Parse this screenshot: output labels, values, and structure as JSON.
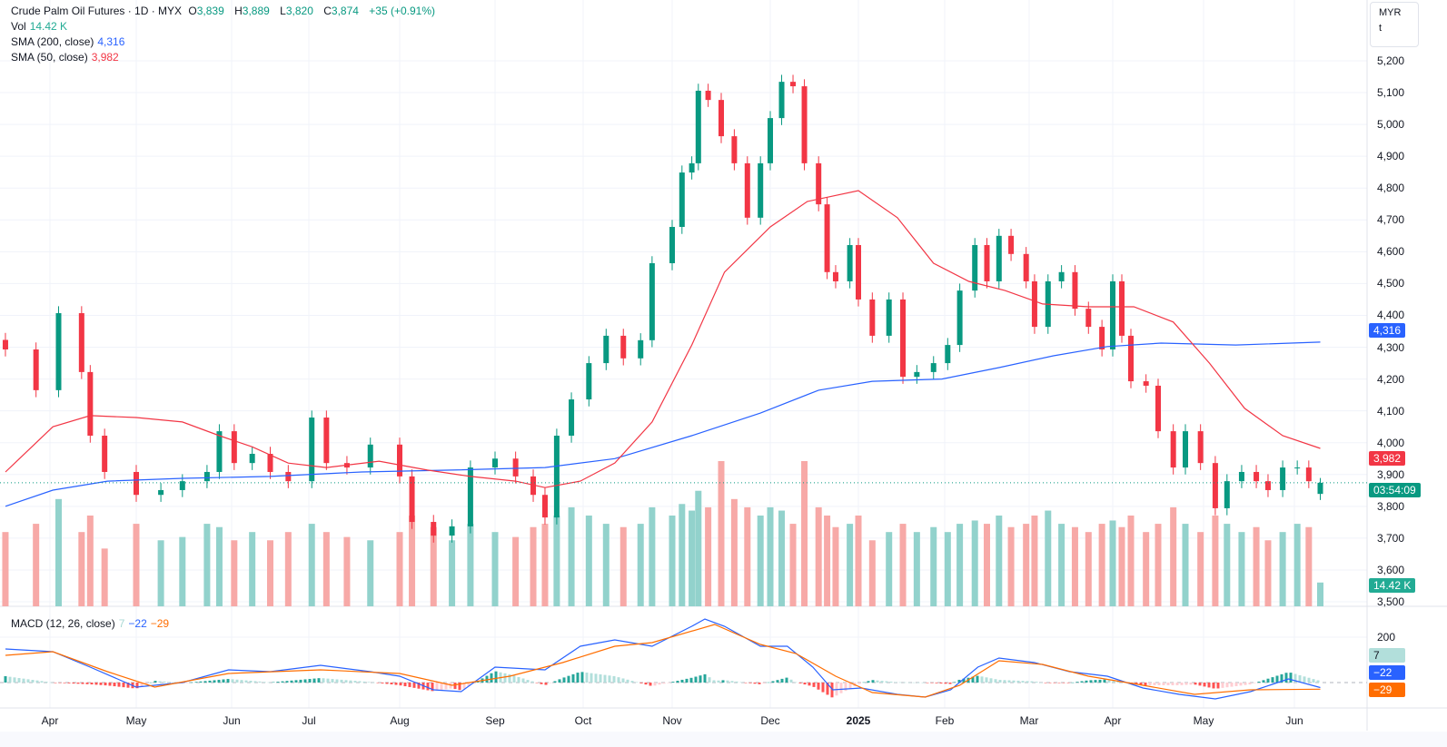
{
  "header": {
    "symbol": "Crude Palm Oil Futures · 1D · MYX",
    "o_label": "O",
    "o": "3,839",
    "h_label": "H",
    "h": "3,889",
    "l_label": "L",
    "l": "3,820",
    "c_label": "C",
    "c": "3,874",
    "change": "+35 (+0.91%)",
    "vol_label": "Vol",
    "vol": "14.42 K",
    "sma200_label": "SMA (200, close)",
    "sma200": "4,316",
    "sma50_label": "SMA (50, close)",
    "sma50": "3,982",
    "macd_label": "MACD (12, 26, close)",
    "macd_hist": "7",
    "macd": "−22",
    "macd_signal": "−29"
  },
  "unit_box": {
    "currency": "MYR",
    "unit": "t"
  },
  "badges": {
    "sma200": "4,316",
    "sma50": "3,982",
    "countdown": "03:54:09",
    "volume": "14.42 K",
    "macd_hist": "7",
    "macd": "−22",
    "macd_signal": "−29"
  },
  "colors": {
    "up": "#089981",
    "down": "#f23645",
    "vol_up": "#92d2cc",
    "vol_down": "#f7a9a7",
    "sma200": "#2962ff",
    "sma50": "#f23645",
    "macd": "#2962ff",
    "signal": "#ff6d00",
    "grid": "#f0f3fa"
  },
  "chart_data": {
    "type": "candlestick",
    "title": "Crude Palm Oil Futures · 1D · MYX",
    "ylim": [
      3500,
      5200
    ],
    "y_ticks": [
      "5,200",
      "5,100",
      "5,000",
      "4,900",
      "4,800",
      "4,700",
      "4,600",
      "4,500",
      "4,400",
      "4,300",
      "4,200",
      "4,100",
      "4,000",
      "3,900",
      "3,800",
      "3,700",
      "3,600",
      "3,500"
    ],
    "macd_ticks": [
      "200"
    ],
    "x_ticks": [
      "Apr",
      "May",
      "Jun",
      "Jul",
      "Aug",
      "Sep",
      "Oct",
      "Nov",
      "Dec",
      "2025",
      "Feb",
      "Mar",
      "Apr",
      "May",
      "Jun"
    ],
    "grid": true,
    "last_candle": {
      "open": 3839,
      "high": 3889,
      "low": 3820,
      "close": 3874
    },
    "dates": [
      "2024-03-16",
      "2024-03-27",
      "2024-04-04",
      "2024-04-12",
      "2024-04-15",
      "2024-04-20",
      "2024-05-01",
      "2024-05-09",
      "2024-05-16",
      "2024-05-24",
      "2024-05-28",
      "2024-06-02",
      "2024-06-09",
      "2024-06-16",
      "2024-06-23",
      "2024-07-02",
      "2024-07-07",
      "2024-07-14",
      "2024-07-22",
      "2024-08-01",
      "2024-08-05",
      "2024-08-12",
      "2024-08-18",
      "2024-08-24",
      "2024-09-01",
      "2024-09-08",
      "2024-09-14",
      "2024-09-18",
      "2024-09-22",
      "2024-09-27",
      "2024-10-03",
      "2024-10-09",
      "2024-10-15",
      "2024-10-21",
      "2024-10-25",
      "2024-11-01",
      "2024-11-04",
      "2024-11-07",
      "2024-11-09",
      "2024-11-12",
      "2024-11-16",
      "2024-11-20",
      "2024-11-24",
      "2024-11-28",
      "2024-12-01",
      "2024-12-05",
      "2024-12-09",
      "2024-12-13",
      "2024-12-18",
      "2024-12-21",
      "2024-12-24",
      "2024-12-29",
      "2025-01-01",
      "2025-01-06",
      "2025-01-12",
      "2025-01-17",
      "2025-01-22",
      "2025-01-28",
      "2025-02-02",
      "2025-02-06",
      "2025-02-11",
      "2025-02-15",
      "2025-02-19",
      "2025-02-23",
      "2025-02-28",
      "2025-03-03",
      "2025-03-08",
      "2025-03-13",
      "2025-03-18",
      "2025-03-23",
      "2025-03-28",
      "2025-04-01",
      "2025-04-04",
      "2025-04-07",
      "2025-04-12",
      "2025-04-16",
      "2025-04-21",
      "2025-04-25",
      "2025-04-30",
      "2025-05-05",
      "2025-05-09",
      "2025-05-14",
      "2025-05-19",
      "2025-05-23",
      "2025-05-28",
      "2025-06-02",
      "2025-06-06",
      "2025-06-10"
    ],
    "close": [
      4293,
      4165,
      4407,
      4222,
      4022,
      3908,
      3836,
      3851,
      3879,
      3908,
      4036,
      3936,
      3965,
      3908,
      3879,
      4079,
      3936,
      3922,
      3994,
      3894,
      3751,
      3708,
      3737,
      3922,
      3950,
      3894,
      3836,
      3765,
      4022,
      4136,
      4250,
      4336,
      4265,
      4322,
      4564,
      4678,
      4849,
      4878,
      5106,
      5077,
      4963,
      4878,
      4707,
      4878,
      5020,
      5134,
      5120,
      4878,
      4749,
      4536,
      4507,
      4621,
      4450,
      4336,
      4450,
      4207,
      4222,
      4250,
      4307,
      4478,
      4621,
      4507,
      4650,
      4593,
      4507,
      4364,
      4507,
      4536,
      4421,
      4364,
      4293,
      4507,
      4336,
      4193,
      4179,
      4036,
      3922,
      4036,
      3936,
      3794,
      3879,
      3908,
      3879,
      3851,
      3922,
      3922,
      3879,
      3874
    ],
    "volume_k": [
      45,
      50,
      65,
      45,
      55,
      35,
      50,
      40,
      42,
      50,
      48,
      40,
      45,
      40,
      45,
      50,
      45,
      42,
      40,
      45,
      55,
      48,
      40,
      50,
      45,
      42,
      48,
      50,
      55,
      60,
      55,
      50,
      48,
      50,
      60,
      55,
      62,
      58,
      70,
      60,
      88,
      65,
      60,
      55,
      60,
      58,
      50,
      88,
      60,
      55,
      48,
      50,
      55,
      40,
      45,
      50,
      45,
      48,
      45,
      50,
      52,
      50,
      55,
      48,
      50,
      55,
      58,
      50,
      48,
      45,
      50,
      52,
      48,
      55,
      45,
      50,
      60,
      50,
      45,
      55,
      50,
      45,
      48,
      40,
      45,
      50,
      48,
      14.42
    ],
    "sma50": [
      [
        "2024-03-16",
        3908
      ],
      [
        "2024-04-02",
        4050
      ],
      [
        "2024-04-15",
        4085
      ],
      [
        "2024-05-01",
        4079
      ],
      [
        "2024-05-16",
        4065
      ],
      [
        "2024-05-28",
        4022
      ],
      [
        "2024-06-09",
        3987
      ],
      [
        "2024-06-23",
        3936
      ],
      [
        "2024-07-07",
        3922
      ],
      [
        "2024-07-25",
        3942
      ],
      [
        "2024-08-10",
        3914
      ],
      [
        "2024-08-24",
        3894
      ],
      [
        "2024-09-08",
        3879
      ],
      [
        "2024-09-18",
        3859
      ],
      [
        "2024-09-30",
        3879
      ],
      [
        "2024-10-12",
        3936
      ],
      [
        "2024-10-25",
        4065
      ],
      [
        "2024-11-07",
        4307
      ],
      [
        "2024-11-17",
        4536
      ],
      [
        "2024-12-01",
        4678
      ],
      [
        "2024-12-14",
        4758
      ],
      [
        "2025-01-01",
        4792
      ],
      [
        "2025-01-15",
        4707
      ],
      [
        "2025-01-28",
        4564
      ],
      [
        "2025-02-09",
        4507
      ],
      [
        "2025-02-21",
        4478
      ],
      [
        "2025-03-06",
        4436
      ],
      [
        "2025-03-23",
        4427
      ],
      [
        "2025-04-08",
        4427
      ],
      [
        "2025-04-21",
        4379
      ],
      [
        "2025-05-03",
        4250
      ],
      [
        "2025-05-15",
        4108
      ],
      [
        "2025-05-28",
        4022
      ],
      [
        "2025-06-10",
        3982
      ]
    ],
    "sma200": [
      [
        "2024-03-16",
        3800
      ],
      [
        "2024-04-02",
        3851
      ],
      [
        "2024-04-21",
        3879
      ],
      [
        "2024-05-16",
        3888
      ],
      [
        "2024-06-16",
        3894
      ],
      [
        "2024-07-19",
        3908
      ],
      [
        "2024-08-18",
        3914
      ],
      [
        "2024-09-18",
        3922
      ],
      [
        "2024-10-12",
        3950
      ],
      [
        "2024-11-07",
        4022
      ],
      [
        "2024-11-28",
        4093
      ],
      [
        "2024-12-18",
        4165
      ],
      [
        "2025-01-06",
        4193
      ],
      [
        "2025-01-31",
        4200
      ],
      [
        "2025-02-19",
        4236
      ],
      [
        "2025-03-10",
        4273
      ],
      [
        "2025-03-30",
        4302
      ],
      [
        "2025-04-17",
        4313
      ],
      [
        "2025-05-12",
        4307
      ],
      [
        "2025-06-10",
        4316
      ]
    ],
    "macd": [
      [
        "2024-03-16",
        148
      ],
      [
        "2024-04-02",
        136
      ],
      [
        "2024-04-15",
        68
      ],
      [
        "2024-05-01",
        -20
      ],
      [
        "2024-05-16",
        0
      ],
      [
        "2024-05-31",
        56
      ],
      [
        "2024-06-16",
        48
      ],
      [
        "2024-07-05",
        76
      ],
      [
        "2024-07-22",
        48
      ],
      [
        "2024-08-01",
        28
      ],
      [
        "2024-08-12",
        -32
      ],
      [
        "2024-08-21",
        -40
      ],
      [
        "2024-09-01",
        68
      ],
      [
        "2024-09-18",
        56
      ],
      [
        "2024-09-30",
        160
      ],
      [
        "2024-10-12",
        188
      ],
      [
        "2024-10-25",
        160
      ],
      [
        "2024-11-07",
        248
      ],
      [
        "2024-11-11",
        280
      ],
      [
        "2024-11-17",
        248
      ],
      [
        "2024-11-28",
        160
      ],
      [
        "2024-12-07",
        160
      ],
      [
        "2024-12-16",
        68
      ],
      [
        "2024-12-23",
        -32
      ],
      [
        "2025-01-02",
        -24
      ],
      [
        "2025-01-15",
        -52
      ],
      [
        "2025-01-25",
        -64
      ],
      [
        "2025-02-03",
        -32
      ],
      [
        "2025-02-12",
        68
      ],
      [
        "2025-02-19",
        108
      ],
      [
        "2025-03-03",
        88
      ],
      [
        "2025-03-16",
        48
      ],
      [
        "2025-03-30",
        28
      ],
      [
        "2025-04-11",
        -24
      ],
      [
        "2025-04-23",
        -52
      ],
      [
        "2025-05-05",
        -72
      ],
      [
        "2025-05-17",
        -40
      ],
      [
        "2025-05-30",
        16
      ],
      [
        "2025-06-10",
        -22
      ]
    ],
    "signal": [
      [
        "2024-03-16",
        120
      ],
      [
        "2024-04-02",
        136
      ],
      [
        "2024-04-21",
        48
      ],
      [
        "2024-05-07",
        -20
      ],
      [
        "2024-05-31",
        40
      ],
      [
        "2024-07-05",
        56
      ],
      [
        "2024-08-01",
        40
      ],
      [
        "2024-08-18",
        -12
      ],
      [
        "2024-09-06",
        28
      ],
      [
        "2024-09-24",
        88
      ],
      [
        "2024-10-12",
        160
      ],
      [
        "2024-10-25",
        176
      ],
      [
        "2024-11-14",
        256
      ],
      [
        "2024-11-28",
        168
      ],
      [
        "2024-12-10",
        128
      ],
      [
        "2024-12-24",
        28
      ],
      [
        "2025-01-06",
        -44
      ],
      [
        "2025-01-25",
        -64
      ],
      [
        "2025-02-06",
        -12
      ],
      [
        "2025-02-19",
        96
      ],
      [
        "2025-03-06",
        80
      ],
      [
        "2025-03-23",
        28
      ],
      [
        "2025-04-11",
        -12
      ],
      [
        "2025-04-28",
        -52
      ],
      [
        "2025-05-17",
        -32
      ],
      [
        "2025-06-10",
        -29
      ]
    ]
  }
}
